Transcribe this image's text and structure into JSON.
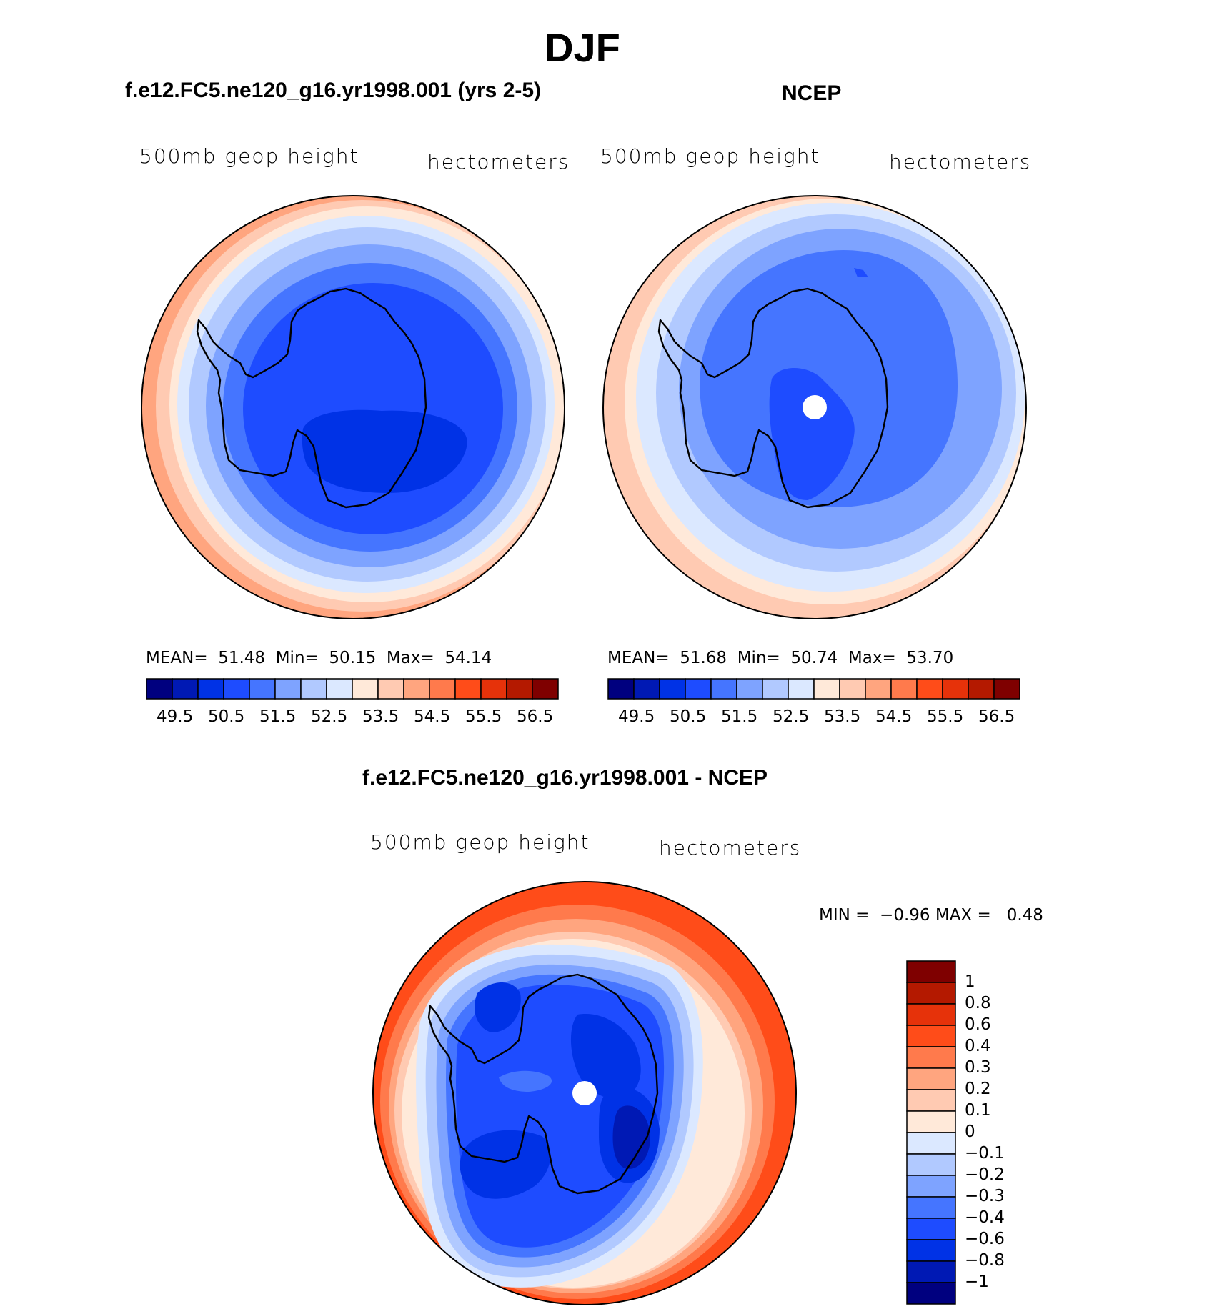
{
  "page": {
    "title": "DJF"
  },
  "palette": [
    "#00007f",
    "#0019b4",
    "#0032e6",
    "#1e4cff",
    "#4575ff",
    "#7ea3ff",
    "#b1c9ff",
    "#dbe8ff",
    "#ffe9d9",
    "#ffcab2",
    "#ffa57f",
    "#ff7a4c",
    "#ff4c19",
    "#e6320a",
    "#b41900",
    "#7f0000"
  ],
  "panels": [
    {
      "id": "model",
      "title": "f.e12.FC5.ne120_g16.yr1998.001 (yrs 2-5)",
      "variable": "500mb geop height",
      "units": "hectometers",
      "stats": {
        "mean_label": "MEAN=",
        "mean": "51.48",
        "min_label": "Min=",
        "min": "50.15",
        "max_label": "Max=",
        "max": "54.14"
      },
      "colorbar_labels": [
        "49.5",
        "50.5",
        "51.5",
        "52.5",
        "53.5",
        "54.5",
        "55.5",
        "56.5"
      ]
    },
    {
      "id": "obs",
      "title": "NCEP",
      "variable": "500mb geop height",
      "units": "hectometers",
      "stats": {
        "mean_label": "MEAN=",
        "mean": "51.68",
        "min_label": "Min=",
        "min": "50.74",
        "max_label": "Max=",
        "max": "53.70"
      },
      "colorbar_labels": [
        "49.5",
        "50.5",
        "51.5",
        "52.5",
        "53.5",
        "54.5",
        "55.5",
        "56.5"
      ]
    },
    {
      "id": "diff",
      "title": "f.e12.FC5.ne120_g16.yr1998.001 - NCEP",
      "variable": "500mb geop height",
      "units": "hectometers",
      "stats": {
        "min_label": "MIN =",
        "min": "−0.96",
        "max_label": "MAX =",
        "max": "0.48"
      },
      "colorbar_labels": [
        "1",
        "0.8",
        "0.6",
        "0.4",
        "0.3",
        "0.2",
        "0.1",
        "0",
        "−0.1",
        "−0.2",
        "−0.3",
        "−0.4",
        "−0.6",
        "−0.8",
        "−1"
      ]
    }
  ]
}
